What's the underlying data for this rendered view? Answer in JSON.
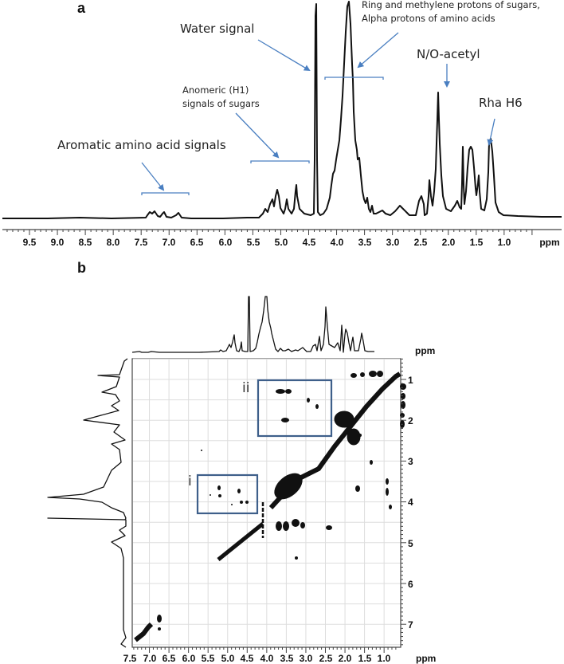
{
  "panel_a": {
    "label": "a",
    "xlabel": "ppm",
    "x_ticks": [
      "9.5",
      "9.0",
      "8.5",
      "8.0",
      "7.5",
      "7.0",
      "6.5",
      "6.0",
      "5.5",
      "5.0",
      "4.5",
      "4.0",
      "3.5",
      "3.0",
      "2.5",
      "2.0",
      "1.5",
      "1.0"
    ],
    "annotations": {
      "water": "Water signal",
      "ring_line1": "Ring and methylene protons of sugars,",
      "ring_line2": "Alpha protons of amino acids",
      "anomeric_line1": "Anomeric  (H1)",
      "anomeric_line2": "signals of sugars",
      "aromatic": "Aromatic amino acid signals",
      "acetyl": "N/O-acetyl",
      "rha": "Rha H6"
    }
  },
  "panel_b": {
    "label": "b",
    "top_projection_unit": "ppm",
    "xlabel": "ppm",
    "ylabel": "ppm",
    "x_ticks": [
      "7.5",
      "7.0",
      "6.5",
      "6.0",
      "5.5",
      "5.0",
      "4.5",
      "4.0",
      "3.5",
      "3.0",
      "2.5",
      "2.0",
      "1.5",
      "1.0"
    ],
    "y_ticks": [
      "1",
      "2",
      "3",
      "4",
      "5",
      "6",
      "7"
    ],
    "boxes": [
      {
        "label": "i"
      },
      {
        "label": "ii"
      }
    ]
  },
  "colors": {
    "spectrum": "#111111",
    "annotation_arrow": "#4a7fc1",
    "box": "#3e5f8a",
    "grid": "#dddddd"
  },
  "chart_data": [
    {
      "type": "line",
      "title": "a — 1H NMR spectrum",
      "xlabel": "ppm",
      "ylabel": "",
      "xlim": [
        9.9,
        0.4
      ],
      "x_reversed": true,
      "peaks_ppm": [
        {
          "ppm": 7.35,
          "rel_height": 0.05
        },
        {
          "ppm": 7.28,
          "rel_height": 0.05
        },
        {
          "ppm": 7.1,
          "rel_height": 0.04
        },
        {
          "ppm": 6.82,
          "rel_height": 0.04
        },
        {
          "ppm": 5.35,
          "rel_height": 0.09
        },
        {
          "ppm": 5.2,
          "rel_height": 0.17
        },
        {
          "ppm": 5.05,
          "rel_height": 0.24
        },
        {
          "ppm": 4.75,
          "rel_height": 0.12
        },
        {
          "ppm": 4.42,
          "rel_height": 0.92
        },
        {
          "ppm": 4.05,
          "rel_height": 0.3
        },
        {
          "ppm": 3.8,
          "rel_height": 1.0
        },
        {
          "ppm": 3.45,
          "rel_height": 0.25
        },
        {
          "ppm": 3.2,
          "rel_height": 0.06
        },
        {
          "ppm": 2.7,
          "rel_height": 0.08
        },
        {
          "ppm": 2.3,
          "rel_height": 0.1
        },
        {
          "ppm": 2.2,
          "rel_height": 0.27
        },
        {
          "ppm": 2.03,
          "rel_height": 0.52
        },
        {
          "ppm": 1.65,
          "rel_height": 0.08
        },
        {
          "ppm": 1.48,
          "rel_height": 0.33
        },
        {
          "ppm": 1.32,
          "rel_height": 0.34
        },
        {
          "ppm": 1.22,
          "rel_height": 0.22
        },
        {
          "ppm": 0.93,
          "rel_height": 0.36
        }
      ],
      "annotations": [
        {
          "text": "Water signal",
          "ppm": 4.42
        },
        {
          "text": "Ring and methylene protons of sugars, Alpha protons of amino acids",
          "range_ppm": [
            4.2,
            3.2
          ]
        },
        {
          "text": "Anomeric (H1) signals of sugars",
          "range_ppm": [
            5.55,
            4.5
          ]
        },
        {
          "text": "Aromatic amino acid signals",
          "range_ppm": [
            7.5,
            6.65
          ]
        },
        {
          "text": "N/O-acetyl",
          "ppm": 2.03
        },
        {
          "text": "Rha H6",
          "ppm": 1.32
        }
      ]
    },
    {
      "type": "heatmap",
      "title": "b — 2D 1H-1H TOCSY/COSY contour plot",
      "xlabel": "ppm",
      "ylabel": "ppm",
      "xlim": [
        7.55,
        0.7
      ],
      "ylim": [
        0.5,
        7.6
      ],
      "grid": true,
      "diagonal": "contours along diagonal from (7.4,7.4) to (0.9,0.9)",
      "regions": [
        {
          "label": "i",
          "x_ppm": [
            5.9,
            4.45
          ],
          "y_ppm": [
            3.35,
            4.3
          ]
        },
        {
          "label": "ii",
          "x_ppm": [
            4.4,
            2.6
          ],
          "y_ppm": [
            1.05,
            2.4
          ]
        }
      ],
      "cross_peaks_sample": [
        {
          "x": 3.9,
          "y": 1.3
        },
        {
          "x": 3.6,
          "y": 1.3
        },
        {
          "x": 3.2,
          "y": 1.6
        },
        {
          "x": 3.0,
          "y": 1.7
        },
        {
          "x": 3.8,
          "y": 2.0
        },
        {
          "x": 3.9,
          "y": 2.0
        },
        {
          "x": 5.2,
          "y": 3.7
        },
        {
          "x": 5.2,
          "y": 3.85
        },
        {
          "x": 4.8,
          "y": 3.75
        },
        {
          "x": 4.7,
          "y": 3.95
        },
        {
          "x": 4.55,
          "y": 3.95
        },
        {
          "x": 2.0,
          "y": 1.0
        },
        {
          "x": 1.3,
          "y": 1.6
        },
        {
          "x": 1.2,
          "y": 1.9
        },
        {
          "x": 1.3,
          "y": 2.1
        },
        {
          "x": 2.2,
          "y": 3.2
        },
        {
          "x": 1.5,
          "y": 3.5
        },
        {
          "x": 1.45,
          "y": 3.8
        },
        {
          "x": 1.3,
          "y": 4.2
        },
        {
          "x": 3.6,
          "y": 4.6
        },
        {
          "x": 3.3,
          "y": 4.6
        },
        {
          "x": 2.75,
          "y": 4.65
        },
        {
          "x": 3.5,
          "y": 5.4
        },
        {
          "x": 6.85,
          "y": 7.0
        }
      ]
    }
  ]
}
